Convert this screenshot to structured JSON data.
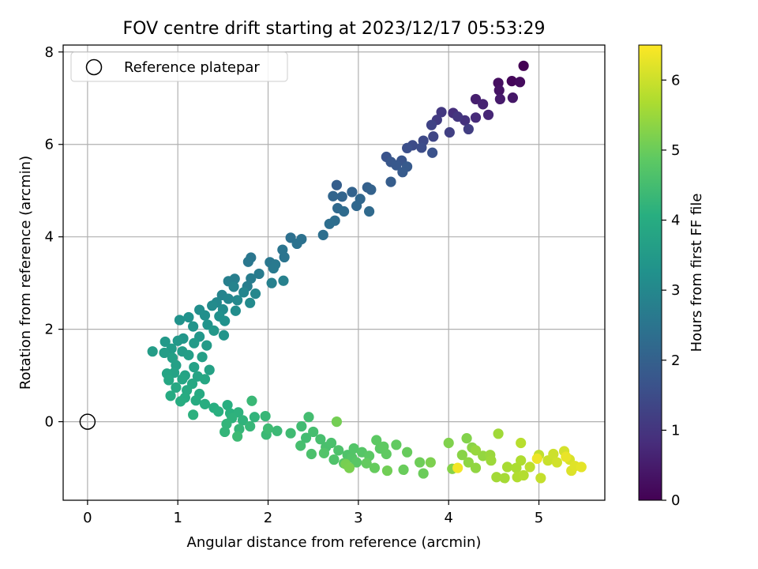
{
  "chart_data": {
    "type": "scatter",
    "title": "FOV centre drift starting at 2023/12/17 05:53:29",
    "xlabel": "Angular distance from reference (arcmin)",
    "ylabel": "Rotation from reference (arcmin)",
    "xlim": [
      -0.27,
      5.73
    ],
    "ylim": [
      -1.7,
      8.15
    ],
    "xticks": [
      0,
      1,
      2,
      3,
      4,
      5
    ],
    "yticks": [
      0,
      2,
      4,
      6,
      8
    ],
    "grid": true,
    "legend": {
      "placement": "top-left",
      "entries": [
        "Reference platepar"
      ]
    },
    "reference_point": {
      "name": "Reference platepar",
      "x": 0,
      "y": 0,
      "marker": "open-circle",
      "color": "#000000"
    },
    "colorbar": {
      "label": "Hours from first FF file",
      "range": [
        0,
        6.5
      ],
      "ticks": [
        0,
        1,
        2,
        3,
        4,
        5,
        6
      ],
      "colormap": "viridis"
    },
    "series": [
      {
        "colored_by": "hours",
        "points": [
          [
            4.83,
            7.7,
            0.0
          ],
          [
            4.7,
            7.37,
            0.1
          ],
          [
            4.79,
            7.35,
            0.18
          ],
          [
            4.55,
            7.33,
            0.25
          ],
          [
            4.56,
            7.17,
            0.33
          ],
          [
            4.71,
            7.01,
            0.4
          ],
          [
            4.57,
            6.98,
            0.47
          ],
          [
            4.3,
            6.98,
            0.55
          ],
          [
            4.38,
            6.87,
            0.62
          ],
          [
            4.44,
            6.64,
            0.7
          ],
          [
            4.3,
            6.58,
            0.78
          ],
          [
            4.05,
            6.68,
            0.85
          ],
          [
            4.18,
            6.52,
            0.92
          ],
          [
            4.1,
            6.6,
            1.0
          ],
          [
            3.92,
            6.7,
            1.05
          ],
          [
            3.87,
            6.53,
            1.12
          ],
          [
            4.22,
            6.33,
            1.18
          ],
          [
            4.01,
            6.26,
            1.24
          ],
          [
            3.81,
            6.42,
            1.3
          ],
          [
            3.83,
            6.17,
            1.36
          ],
          [
            3.72,
            6.08,
            1.42
          ],
          [
            3.6,
            5.98,
            1.48
          ],
          [
            3.7,
            5.93,
            1.52
          ],
          [
            3.54,
            5.92,
            1.56
          ],
          [
            3.82,
            5.82,
            1.62
          ],
          [
            3.31,
            5.73,
            1.66
          ],
          [
            3.48,
            5.65,
            1.7
          ],
          [
            3.36,
            5.62,
            1.74
          ],
          [
            3.42,
            5.55,
            1.78
          ],
          [
            3.54,
            5.52,
            1.82
          ],
          [
            3.49,
            5.4,
            1.86
          ],
          [
            3.36,
            5.19,
            1.9
          ],
          [
            2.76,
            5.12,
            1.94
          ],
          [
            3.1,
            5.07,
            1.98
          ],
          [
            3.14,
            5.02,
            2.02
          ],
          [
            2.93,
            4.97,
            2.06
          ],
          [
            2.82,
            4.87,
            2.09
          ],
          [
            2.72,
            4.88,
            2.12
          ],
          [
            3.02,
            4.82,
            2.15
          ],
          [
            2.98,
            4.67,
            2.18
          ],
          [
            2.77,
            4.62,
            2.21
          ],
          [
            3.12,
            4.55,
            2.24
          ],
          [
            2.84,
            4.55,
            2.27
          ],
          [
            2.74,
            4.35,
            2.3
          ],
          [
            2.68,
            4.28,
            2.33
          ],
          [
            2.61,
            4.04,
            2.36
          ],
          [
            2.25,
            3.98,
            2.39
          ],
          [
            2.37,
            3.95,
            2.42
          ],
          [
            2.32,
            3.85,
            2.45
          ],
          [
            2.16,
            3.72,
            2.48
          ],
          [
            2.18,
            3.56,
            2.5
          ],
          [
            1.81,
            3.55,
            2.53
          ],
          [
            1.78,
            3.46,
            2.56
          ],
          [
            2.02,
            3.45,
            2.58
          ],
          [
            2.08,
            3.4,
            2.61
          ],
          [
            2.06,
            3.32,
            2.64
          ],
          [
            1.9,
            3.2,
            2.67
          ],
          [
            1.81,
            3.1,
            2.7
          ],
          [
            1.77,
            2.93,
            2.72
          ],
          [
            1.63,
            3.09,
            2.75
          ],
          [
            1.56,
            3.04,
            2.78
          ],
          [
            2.04,
            3.0,
            2.81
          ],
          [
            2.17,
            3.05,
            2.84
          ],
          [
            1.62,
            2.92,
            2.87
          ],
          [
            1.49,
            2.74,
            2.9
          ],
          [
            1.73,
            2.8,
            2.93
          ],
          [
            1.56,
            2.66,
            2.96
          ],
          [
            1.86,
            2.77,
            2.99
          ],
          [
            1.43,
            2.58,
            3.02
          ],
          [
            1.66,
            2.63,
            3.04
          ],
          [
            1.8,
            2.57,
            3.07
          ],
          [
            1.38,
            2.51,
            3.09
          ],
          [
            1.5,
            2.43,
            3.12
          ],
          [
            1.64,
            2.4,
            3.14
          ],
          [
            1.24,
            2.42,
            3.17
          ],
          [
            1.3,
            2.3,
            3.19
          ],
          [
            1.46,
            2.28,
            3.22
          ],
          [
            1.52,
            2.18,
            3.24
          ],
          [
            1.12,
            2.26,
            3.27
          ],
          [
            1.02,
            2.2,
            3.29
          ],
          [
            1.33,
            2.1,
            3.32
          ],
          [
            1.17,
            2.06,
            3.34
          ],
          [
            1.51,
            1.87,
            3.37
          ],
          [
            1.06,
            1.8,
            3.39
          ],
          [
            1.24,
            1.84,
            3.41
          ],
          [
            1.4,
            1.97,
            3.43
          ],
          [
            1.0,
            1.75,
            3.45
          ],
          [
            0.86,
            1.73,
            3.47
          ],
          [
            1.18,
            1.7,
            3.49
          ],
          [
            1.32,
            1.65,
            3.51
          ],
          [
            0.93,
            1.58,
            3.53
          ],
          [
            1.05,
            1.52,
            3.55
          ],
          [
            0.72,
            1.52,
            3.57
          ],
          [
            0.85,
            1.49,
            3.59
          ],
          [
            1.12,
            1.44,
            3.61
          ],
          [
            0.94,
            1.38,
            3.63
          ],
          [
            1.27,
            1.4,
            3.65
          ],
          [
            0.98,
            1.22,
            3.67
          ],
          [
            1.18,
            1.18,
            3.69
          ],
          [
            1.35,
            1.12,
            3.71
          ],
          [
            0.96,
            1.06,
            3.73
          ],
          [
            1.08,
            1.0,
            3.75
          ],
          [
            0.88,
            1.04,
            3.77
          ],
          [
            1.22,
            0.98,
            3.79
          ],
          [
            1.05,
            0.92,
            3.81
          ],
          [
            0.9,
            0.9,
            3.83
          ],
          [
            1.3,
            0.92,
            3.85
          ],
          [
            1.16,
            0.82,
            3.87
          ],
          [
            0.98,
            0.74,
            3.89
          ],
          [
            1.1,
            0.68,
            3.91
          ],
          [
            1.24,
            0.6,
            3.93
          ],
          [
            0.92,
            0.56,
            3.95
          ],
          [
            1.08,
            0.52,
            3.97
          ],
          [
            1.2,
            0.46,
            3.99
          ],
          [
            1.03,
            0.44,
            4.01
          ],
          [
            1.3,
            0.38,
            4.03
          ],
          [
            1.4,
            0.3,
            4.05
          ],
          [
            1.55,
            0.36,
            4.07
          ],
          [
            1.45,
            0.22,
            4.09
          ],
          [
            1.58,
            0.18,
            4.11
          ],
          [
            1.17,
            0.15,
            4.13
          ],
          [
            1.67,
            0.2,
            4.15
          ],
          [
            1.6,
            0.08,
            4.17
          ],
          [
            1.72,
            0.03,
            4.19
          ],
          [
            1.85,
            0.1,
            4.21
          ],
          [
            1.54,
            -0.05,
            4.23
          ],
          [
            1.52,
            -0.22,
            4.25
          ],
          [
            1.68,
            -0.16,
            4.27
          ],
          [
            1.8,
            -0.1,
            4.29
          ],
          [
            1.97,
            0.12,
            4.31
          ],
          [
            1.82,
            0.45,
            4.33
          ],
          [
            1.98,
            -0.28,
            4.35
          ],
          [
            2.1,
            -0.2,
            4.37
          ],
          [
            1.66,
            -0.32,
            4.39
          ],
          [
            2.0,
            -0.15,
            4.41
          ],
          [
            2.25,
            -0.25,
            4.43
          ],
          [
            2.37,
            -0.1,
            4.45
          ],
          [
            2.42,
            -0.35,
            4.47
          ],
          [
            2.45,
            0.1,
            4.49
          ],
          [
            2.5,
            -0.22,
            4.51
          ],
          [
            2.36,
            -0.52,
            4.53
          ],
          [
            2.58,
            -0.38,
            4.55
          ],
          [
            2.64,
            -0.55,
            4.57
          ],
          [
            2.7,
            -0.46,
            4.59
          ],
          [
            2.48,
            -0.7,
            4.61
          ],
          [
            2.78,
            -0.62,
            4.63
          ],
          [
            2.88,
            -0.72,
            4.65
          ],
          [
            2.73,
            -0.82,
            4.67
          ],
          [
            2.62,
            -0.68,
            4.69
          ],
          [
            2.95,
            -0.58,
            4.71
          ],
          [
            2.93,
            -0.78,
            4.73
          ],
          [
            3.04,
            -0.66,
            4.75
          ],
          [
            2.84,
            -0.9,
            4.77
          ],
          [
            2.98,
            -0.88,
            4.79
          ],
          [
            3.12,
            -0.74,
            4.81
          ],
          [
            3.24,
            -0.58,
            4.83
          ],
          [
            3.2,
            -0.4,
            4.85
          ],
          [
            3.28,
            -0.54,
            4.87
          ],
          [
            3.31,
            -0.7,
            4.89
          ],
          [
            3.42,
            -0.5,
            4.91
          ],
          [
            3.09,
            -0.9,
            4.93
          ],
          [
            3.18,
            -1.0,
            4.95
          ],
          [
            3.54,
            -0.66,
            4.97
          ],
          [
            3.5,
            -1.04,
            4.99
          ],
          [
            3.72,
            -1.12,
            5.01
          ],
          [
            3.68,
            -0.88,
            5.04
          ],
          [
            3.32,
            -1.06,
            5.07
          ],
          [
            2.76,
            0.0,
            5.1
          ],
          [
            2.86,
            -0.92,
            5.13
          ],
          [
            2.9,
            -1.0,
            5.16
          ],
          [
            3.8,
            -0.88,
            5.19
          ],
          [
            4.0,
            -0.46,
            5.22
          ],
          [
            4.2,
            -0.36,
            5.25
          ],
          [
            4.04,
            -1.02,
            5.28
          ],
          [
            4.15,
            -0.72,
            5.31
          ],
          [
            4.26,
            -0.56,
            5.34
          ],
          [
            4.22,
            -0.88,
            5.37
          ],
          [
            4.3,
            -1.0,
            5.4
          ],
          [
            4.38,
            -0.74,
            5.43
          ],
          [
            4.3,
            -0.62,
            5.46
          ],
          [
            4.46,
            -0.72,
            5.49
          ],
          [
            4.47,
            -0.84,
            5.52
          ],
          [
            4.55,
            -0.26,
            5.55
          ],
          [
            4.53,
            -1.2,
            5.58
          ],
          [
            4.62,
            -1.22,
            5.61
          ],
          [
            4.65,
            -0.98,
            5.64
          ],
          [
            4.75,
            -1.0,
            5.67
          ],
          [
            4.8,
            -0.84,
            5.7
          ],
          [
            4.76,
            -1.2,
            5.73
          ],
          [
            4.83,
            -1.16,
            5.76
          ],
          [
            4.8,
            -0.46,
            5.8
          ],
          [
            4.9,
            -0.98,
            5.84
          ],
          [
            5.0,
            -0.72,
            5.88
          ],
          [
            5.02,
            -1.22,
            5.92
          ],
          [
            5.1,
            -0.84,
            5.96
          ],
          [
            5.16,
            -0.7,
            6.0
          ],
          [
            5.2,
            -0.88,
            6.04
          ],
          [
            5.28,
            -0.64,
            6.08
          ],
          [
            5.34,
            -0.82,
            6.12
          ],
          [
            5.36,
            -1.06,
            6.16
          ],
          [
            5.4,
            -0.96,
            6.2
          ],
          [
            5.47,
            -0.98,
            6.25
          ],
          [
            5.3,
            -0.76,
            6.3
          ],
          [
            4.98,
            -0.8,
            6.35
          ],
          [
            4.1,
            -1.0,
            6.4
          ]
        ]
      }
    ]
  }
}
